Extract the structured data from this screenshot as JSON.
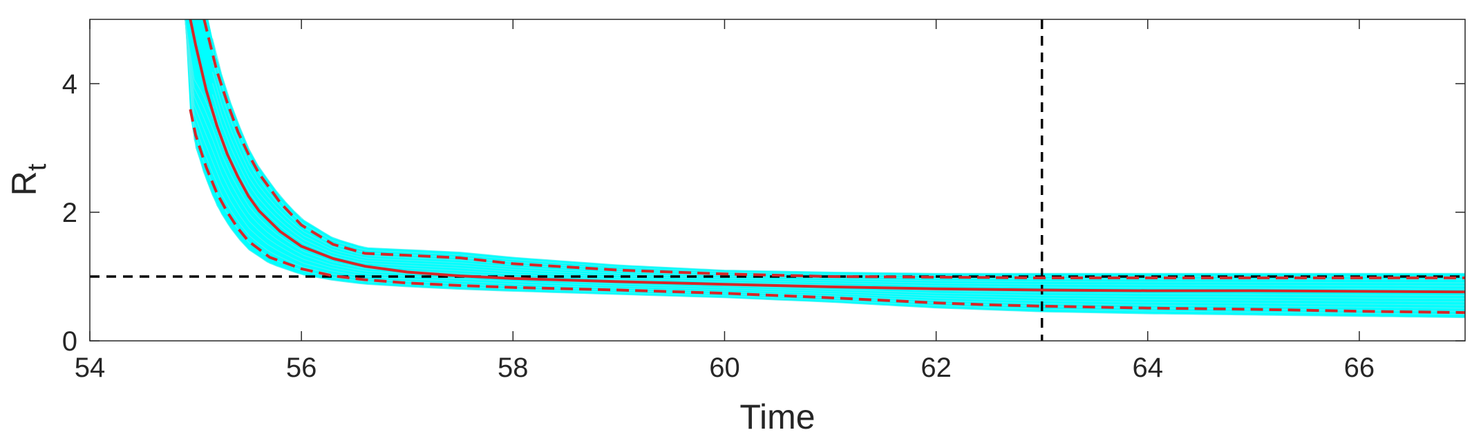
{
  "chart_data": {
    "type": "line",
    "title": "",
    "xlabel": "Time",
    "ylabel": "R",
    "ylabel_subscript": "t",
    "xlim": [
      54,
      67
    ],
    "ylim": [
      0,
      5
    ],
    "xticks": [
      54,
      56,
      58,
      60,
      62,
      64,
      66
    ],
    "yticks": [
      0,
      2,
      4
    ],
    "xtick_labels": [
      "54",
      "56",
      "58",
      "60",
      "62",
      "64",
      "66"
    ],
    "ytick_labels": [
      "0",
      "2",
      "4"
    ],
    "grid": false,
    "legend": "none",
    "reference_lines": {
      "horizontal_y": 1,
      "vertical_x": 63
    },
    "series": [
      {
        "role": "median",
        "style": "solid",
        "color": "#d62728",
        "x": [
          54.95,
          55.0,
          55.1,
          55.2,
          55.3,
          55.4,
          55.5,
          55.6,
          55.8,
          56.0,
          56.3,
          56.6,
          57.0,
          57.5,
          58.0,
          59.0,
          60.0,
          61.0,
          62.0,
          63.0,
          64.0,
          65.0,
          66.0,
          67.0
        ],
        "y": [
          5.0,
          4.6,
          3.9,
          3.35,
          2.9,
          2.55,
          2.25,
          2.02,
          1.7,
          1.47,
          1.28,
          1.16,
          1.07,
          1.01,
          0.97,
          0.92,
          0.88,
          0.84,
          0.81,
          0.79,
          0.78,
          0.78,
          0.77,
          0.76
        ]
      },
      {
        "role": "upper-bound",
        "style": "dashed",
        "color": "#d62728",
        "x": [
          55.08,
          55.2,
          55.3,
          55.4,
          55.5,
          55.6,
          55.8,
          56.0,
          56.3,
          56.6,
          57.0,
          57.5,
          58.0,
          59.0,
          60.0,
          61.0,
          62.0,
          63.0,
          64.0,
          65.0,
          66.0,
          67.0
        ],
        "y": [
          5.0,
          4.2,
          3.7,
          3.25,
          2.9,
          2.6,
          2.15,
          1.8,
          1.5,
          1.36,
          1.33,
          1.29,
          1.2,
          1.1,
          1.04,
          1.0,
          0.99,
          0.98,
          0.98,
          0.98,
          0.98,
          0.98
        ]
      },
      {
        "role": "lower-bound",
        "style": "dashed",
        "color": "#d62728",
        "x": [
          54.95,
          55.0,
          55.1,
          55.2,
          55.3,
          55.4,
          55.5,
          55.7,
          56.0,
          56.3,
          56.6,
          57.0,
          57.5,
          58.0,
          59.0,
          60.0,
          61.0,
          62.0,
          62.5,
          63.0,
          64.0,
          65.0,
          66.0,
          67.0
        ],
        "y": [
          3.6,
          3.2,
          2.7,
          2.3,
          2.0,
          1.75,
          1.55,
          1.3,
          1.12,
          1.01,
          0.95,
          0.9,
          0.86,
          0.83,
          0.79,
          0.74,
          0.67,
          0.59,
          0.56,
          0.54,
          0.51,
          0.49,
          0.46,
          0.44
        ]
      },
      {
        "role": "sample-envelope-upper",
        "style": "band",
        "color": "#00ffff",
        "x": [
          55.12,
          55.2,
          55.3,
          55.4,
          55.5,
          55.6,
          55.8,
          56.0,
          56.3,
          56.6,
          57.0,
          57.5,
          58.0,
          59.0,
          60.0,
          61.0,
          62.0,
          63.0,
          64.0,
          65.0,
          66.0,
          67.0
        ],
        "y": [
          5.0,
          4.4,
          3.85,
          3.4,
          3.0,
          2.7,
          2.25,
          1.9,
          1.6,
          1.45,
          1.42,
          1.38,
          1.3,
          1.18,
          1.1,
          1.07,
          1.05,
          1.05,
          1.05,
          1.05,
          1.05,
          1.05
        ]
      },
      {
        "role": "sample-envelope-lower",
        "style": "band",
        "color": "#00ffff",
        "x": [
          54.9,
          54.95,
          55.0,
          55.1,
          55.2,
          55.3,
          55.4,
          55.5,
          55.7,
          56.0,
          56.3,
          56.6,
          57.0,
          57.5,
          58.0,
          59.0,
          60.0,
          61.0,
          62.0,
          63.0,
          64.0,
          65.0,
          66.0,
          67.0
        ],
        "y": [
          5.0,
          3.5,
          3.0,
          2.5,
          2.1,
          1.82,
          1.6,
          1.42,
          1.2,
          1.03,
          0.94,
          0.88,
          0.84,
          0.8,
          0.77,
          0.72,
          0.67,
          0.6,
          0.51,
          0.45,
          0.42,
          0.4,
          0.38,
          0.36
        ]
      }
    ]
  }
}
